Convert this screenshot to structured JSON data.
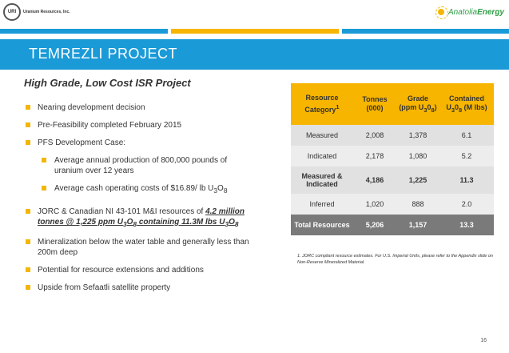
{
  "header": {
    "left_logo_mark": "URI",
    "left_logo_name": "Uranium Resources, Inc.",
    "right_logo_name_1": "Anatolia",
    "right_logo_name_2": "Energy"
  },
  "title": "TEMREZLI PROJECT",
  "subhead": "High Grade, Low Cost ISR Project",
  "bullets": {
    "b1": "Nearing development decision",
    "b2": "Pre-Feasibility completed February 2015",
    "b3": "PFS Development Case:",
    "b3a": "Average annual production of 800,000 pounds of uranium over 12 years",
    "b3b_pre": "Average cash operating costs of $16.89/ lb U",
    "b3b_sub1": "3",
    "b3b_mid": "O",
    "b3b_sub2": "8",
    "b4_pre": "JORC & Canadian NI 43-101 M&I resources of ",
    "b4_s1": "4.2 million tonnes @ 1,225 ppm U",
    "b4_sub1": "3",
    "b4_s2": "O",
    "b4_sub2": "8",
    "b4_s3": " containing 11.3M lbs U",
    "b4_sub3": "3",
    "b4_s4": "O",
    "b4_sub4": "8",
    "b5": "Mineralization below the water table and generally less than 200m deep",
    "b6": "Potential for resource extensions and additions",
    "b7": "Upside from Sefaatli satellite property"
  },
  "table": {
    "h1": "Resource Category",
    "h1_sup": "1",
    "h2": "Tonnes (000)",
    "h3_pre": "Grade (ppm U",
    "h3_sub1": "3",
    "h3_mid": "0",
    "h3_sub2": "8",
    "h3_post": ")",
    "h4_pre": "Contained U",
    "h4_sub1": "3",
    "h4_mid": "0",
    "h4_sub2": "8",
    "h4_post": " (M lbs)",
    "rows": [
      {
        "category": "Measured",
        "tonnes": "2,008",
        "grade": "1,378",
        "contained": "6.1"
      },
      {
        "category": "Indicated",
        "tonnes": "2,178",
        "grade": "1,080",
        "contained": "5.2"
      },
      {
        "category": "Measured & Indicated",
        "tonnes": "4,186",
        "grade": "1,225",
        "contained": "11.3"
      },
      {
        "category": "Inferred",
        "tonnes": "1,020",
        "grade": "888",
        "contained": "2.0"
      },
      {
        "category": "Total Resources",
        "tonnes": "5,206",
        "grade": "1,157",
        "contained": "13.3"
      }
    ]
  },
  "footnote": "1.  JORC compliant resource estimates. For U.S. Imperial Units, please refer to the Appendix slide on Non-Reserve Mineralized Material.",
  "page_number": "16",
  "colors": {
    "accent_blue": "#1a9ad7",
    "accent_gold": "#f7b500",
    "bullet": "#f2b705",
    "total_row": "#7a7a7a"
  }
}
